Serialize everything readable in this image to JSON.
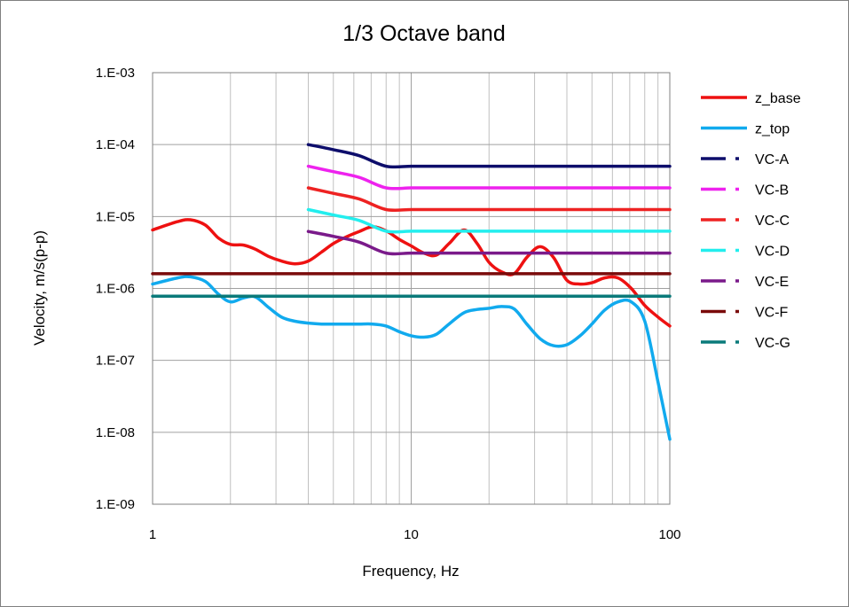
{
  "chart_data": {
    "type": "line",
    "title": "1/3 Octave band",
    "xlabel": "Frequency, Hz",
    "ylabel": "Velocity, m/s(p-p)",
    "xscale": "log",
    "yscale": "log",
    "xlim": [
      1,
      100
    ],
    "ylim": [
      1e-09,
      0.001
    ],
    "x_tick_labels": [
      "1",
      "10",
      "100"
    ],
    "y_tick_labels": [
      "1.E-03",
      "1.E-04",
      "1.E-05",
      "1.E-06",
      "1.E-07",
      "1.E-08",
      "1.E-09"
    ],
    "grid": true,
    "legend_position": "right",
    "series": [
      {
        "name": "z_base",
        "color": "#ee1111",
        "style": "solid",
        "x": [
          1,
          1.25,
          1.4,
          1.6,
          1.8,
          2,
          2.25,
          2.5,
          2.8,
          3.15,
          3.55,
          4,
          4.5,
          5,
          5.6,
          6.3,
          7.1,
          8,
          9,
          10,
          11.2,
          12.5,
          14,
          16,
          18,
          20,
          22.4,
          25,
          28,
          31.5,
          35.5,
          40,
          45,
          50,
          56,
          63,
          71,
          80,
          90,
          100
        ],
        "values": [
          6.5e-06,
          8.5e-06,
          9e-06,
          7.6e-06,
          5e-06,
          4.1e-06,
          4e-06,
          3.5e-06,
          2.8e-06,
          2.4e-06,
          2.2e-06,
          2.4e-06,
          3.2e-06,
          4.2e-06,
          5.2e-06,
          6.2e-06,
          7.2e-06,
          6.3e-06,
          4.8e-06,
          3.9e-06,
          3.1e-06,
          2.9e-06,
          4.2e-06,
          6.5e-06,
          4.2e-06,
          2.3e-06,
          1.7e-06,
          1.6e-06,
          2.7e-06,
          3.8e-06,
          2.7e-06,
          1.3e-06,
          1.15e-06,
          1.2e-06,
          1.4e-06,
          1.4e-06,
          1e-06,
          5.8e-07,
          4e-07,
          3e-07
        ]
      },
      {
        "name": "z_top",
        "color": "#11aaee",
        "style": "solid",
        "x": [
          1,
          1.25,
          1.4,
          1.6,
          1.8,
          2,
          2.25,
          2.5,
          2.8,
          3.15,
          3.55,
          4,
          4.5,
          5,
          5.6,
          6.3,
          7.1,
          8,
          9,
          10,
          11.2,
          12.5,
          14,
          16,
          18,
          20,
          22.4,
          25,
          28,
          31.5,
          35.5,
          40,
          45,
          50,
          56,
          63,
          71,
          80,
          90,
          100
        ],
        "values": [
          1.15e-06,
          1.4e-06,
          1.45e-06,
          1.25e-06,
          8.3e-07,
          6.5e-07,
          7.4e-07,
          7.6e-07,
          5.5e-07,
          4e-07,
          3.5e-07,
          3.3e-07,
          3.2e-07,
          3.2e-07,
          3.2e-07,
          3.2e-07,
          3.2e-07,
          3e-07,
          2.5e-07,
          2.2e-07,
          2.1e-07,
          2.3e-07,
          3.2e-07,
          4.6e-07,
          5.1e-07,
          5.3e-07,
          5.6e-07,
          5.2e-07,
          3.2e-07,
          2e-07,
          1.6e-07,
          1.65e-07,
          2.2e-07,
          3.2e-07,
          5e-07,
          6.5e-07,
          6.5e-07,
          3.5e-07,
          5e-08,
          8e-09
        ]
      },
      {
        "name": "VC-A",
        "color": "#0d0d6b",
        "style": "dash-dot",
        "x": [
          4,
          5,
          6.3,
          8,
          10,
          12.5,
          16,
          20,
          25,
          31.5,
          40,
          50,
          63,
          80,
          100
        ],
        "values": [
          0.0001,
          8.5e-05,
          7e-05,
          5e-05,
          5e-05,
          5e-05,
          5e-05,
          5e-05,
          5e-05,
          5e-05,
          5e-05,
          5e-05,
          5e-05,
          5e-05,
          5e-05
        ]
      },
      {
        "name": "VC-B",
        "color": "#ee22ee",
        "style": "dash-dot",
        "x": [
          4,
          5,
          6.3,
          8,
          10,
          12.5,
          16,
          20,
          25,
          31.5,
          40,
          50,
          63,
          80,
          100
        ],
        "values": [
          5e-05,
          4.2e-05,
          3.5e-05,
          2.5e-05,
          2.5e-05,
          2.5e-05,
          2.5e-05,
          2.5e-05,
          2.5e-05,
          2.5e-05,
          2.5e-05,
          2.5e-05,
          2.5e-05,
          2.5e-05,
          2.5e-05
        ]
      },
      {
        "name": "VC-C",
        "color": "#ee2222",
        "style": "dash-dot",
        "x": [
          4,
          5,
          6.3,
          8,
          10,
          12.5,
          16,
          20,
          25,
          31.5,
          40,
          50,
          63,
          80,
          100
        ],
        "values": [
          2.5e-05,
          2.1e-05,
          1.75e-05,
          1.25e-05,
          1.25e-05,
          1.25e-05,
          1.25e-05,
          1.25e-05,
          1.25e-05,
          1.25e-05,
          1.25e-05,
          1.25e-05,
          1.25e-05,
          1.25e-05,
          1.25e-05
        ]
      },
      {
        "name": "VC-D",
        "color": "#22eeee",
        "style": "dash-dot",
        "x": [
          4,
          5,
          6.3,
          8,
          10,
          12.5,
          16,
          20,
          25,
          31.5,
          40,
          50,
          63,
          80,
          100
        ],
        "values": [
          1.25e-05,
          1.05e-05,
          8.8e-06,
          6.25e-06,
          6.25e-06,
          6.25e-06,
          6.25e-06,
          6.25e-06,
          6.25e-06,
          6.25e-06,
          6.25e-06,
          6.25e-06,
          6.25e-06,
          6.25e-06,
          6.25e-06
        ]
      },
      {
        "name": "VC-E",
        "color": "#7a1a8a",
        "style": "dash-dot",
        "x": [
          4,
          5,
          6.3,
          8,
          10,
          12.5,
          16,
          20,
          25,
          31.5,
          40,
          50,
          63,
          80,
          100
        ],
        "values": [
          6.2e-06,
          5.3e-06,
          4.4e-06,
          3.1e-06,
          3.1e-06,
          3.1e-06,
          3.1e-06,
          3.1e-06,
          3.1e-06,
          3.1e-06,
          3.1e-06,
          3.1e-06,
          3.1e-06,
          3.1e-06,
          3.1e-06
        ]
      },
      {
        "name": "VC-F",
        "color": "#7a0a0a",
        "style": "dash-dot",
        "x": [
          1,
          100
        ],
        "values": [
          1.6e-06,
          1.6e-06
        ]
      },
      {
        "name": "VC-G",
        "color": "#0a7a7a",
        "style": "dash-dot",
        "x": [
          1,
          100
        ],
        "values": [
          7.8e-07,
          7.8e-07
        ]
      }
    ]
  }
}
